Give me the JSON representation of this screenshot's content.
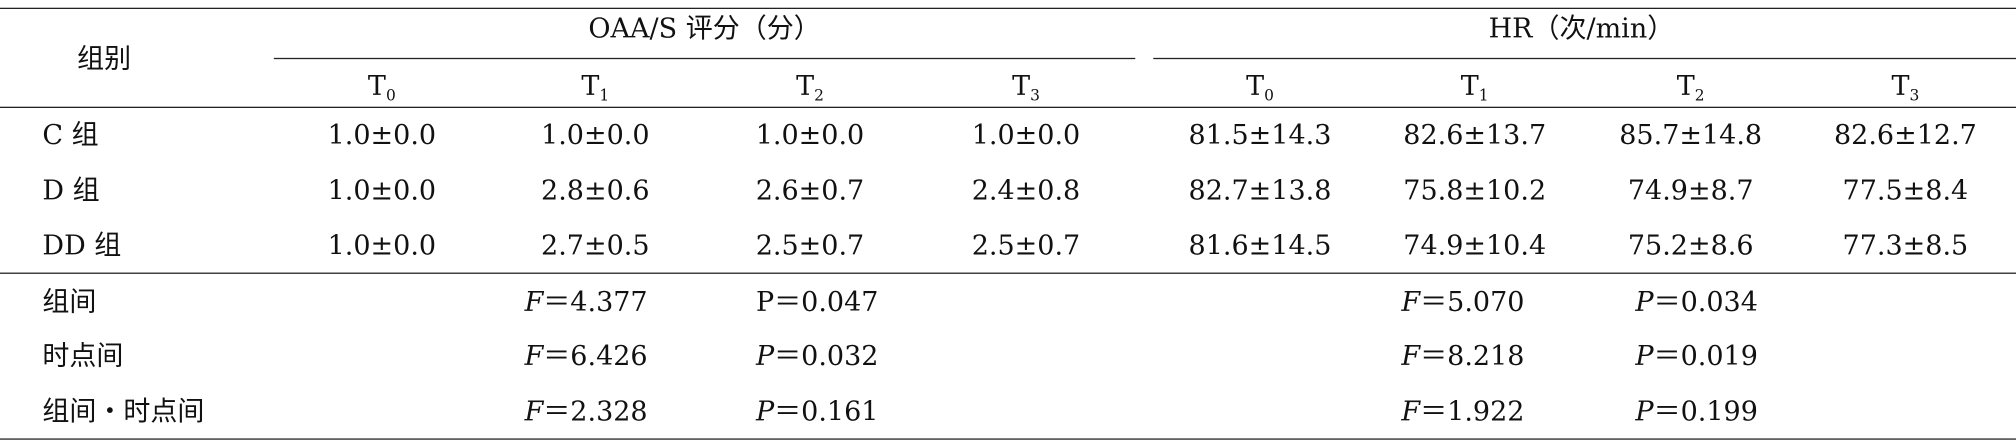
{
  "table": {
    "corner": "组别",
    "groups": [
      "OAA/S 评分（分）",
      "HR（次/min）"
    ],
    "subheaders": [
      {
        "base": "T",
        "sub": "0"
      },
      {
        "base": "T",
        "sub": "1"
      },
      {
        "base": "T",
        "sub": "2"
      },
      {
        "base": "T",
        "sub": "3"
      },
      {
        "base": "T",
        "sub": "0"
      },
      {
        "base": "T",
        "sub": "1"
      },
      {
        "base": "T",
        "sub": "2"
      },
      {
        "base": "T",
        "sub": "3"
      }
    ],
    "rows": [
      [
        "C 组",
        "1.0±0.0",
        "1.0±0.0",
        "1.0±0.0",
        "1.0±0.0",
        "81.5±14.3",
        "82.6±13.7",
        "85.7±14.8",
        "82.6±12.7"
      ],
      [
        "D 组",
        "1.0±0.0",
        "2.8±0.6",
        "2.6±0.7",
        "2.4±0.8",
        "82.7±13.8",
        "75.8±10.2",
        "74.9±8.7",
        "77.5±8.4"
      ],
      [
        "DD 组",
        "1.0±0.0",
        "2.7±0.5",
        "2.5±0.7",
        "2.5±0.7",
        "81.6±14.5",
        "74.9±10.4",
        "75.2±8.6",
        "77.3±8.5"
      ]
    ],
    "stats": [
      [
        "组间",
        "F＝4.377",
        "P＝0.047",
        "F＝5.070",
        "P＝0.034"
      ],
      [
        "时点间",
        "F＝6.426",
        "P＝0.032",
        "F＝8.218",
        "P＝0.019"
      ],
      [
        "组间・时点间",
        "F＝2.328",
        "P＝0.161",
        "F＝1.922",
        "P＝0.199"
      ]
    ]
  }
}
